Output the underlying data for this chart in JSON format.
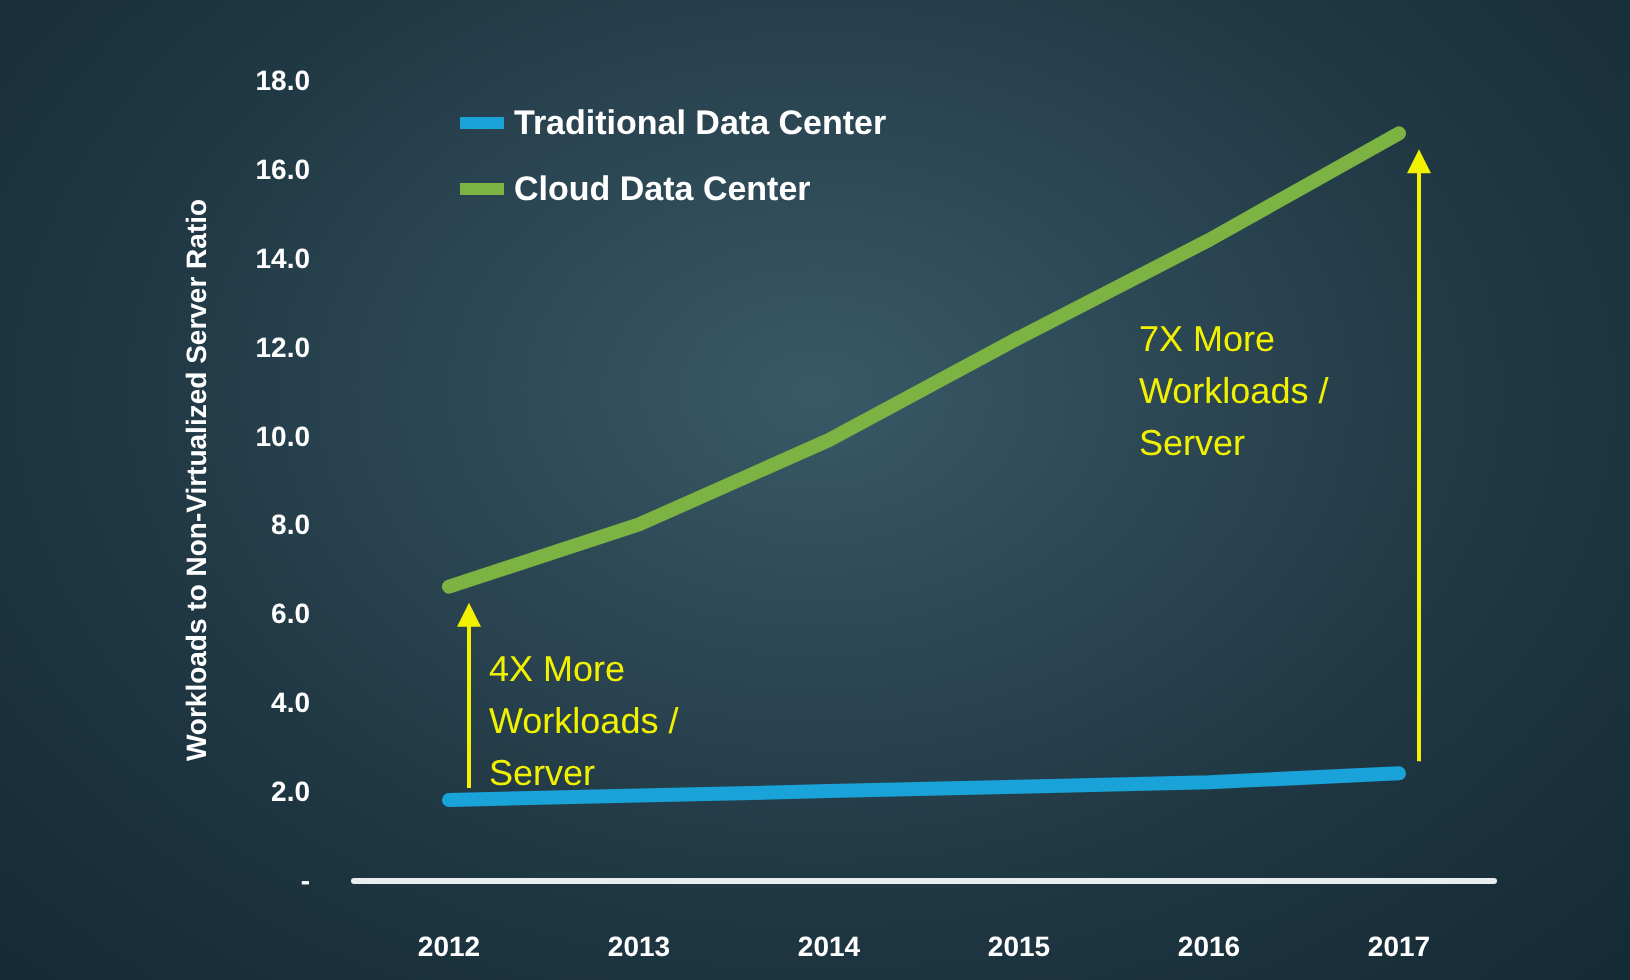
{
  "chart_data": {
    "type": "line",
    "ylabel": "Workloads to Non-Virtualized Server Ratio",
    "categories": [
      "2012",
      "2013",
      "2014",
      "2015",
      "2016",
      "2017"
    ],
    "series": [
      {
        "name": "Traditional Data Center",
        "color": "#1aa3d9",
        "values": [
          1.8,
          1.9,
          2.0,
          2.1,
          2.2,
          2.4
        ]
      },
      {
        "name": "Cloud Data Center",
        "color": "#7cb342",
        "values": [
          6.6,
          8.0,
          9.9,
          12.2,
          14.4,
          16.8
        ]
      }
    ],
    "ylim": [
      0,
      18
    ],
    "yticks": [
      {
        "value": 0,
        "label": "-"
      },
      {
        "value": 2,
        "label": "2.0"
      },
      {
        "value": 4,
        "label": "4.0"
      },
      {
        "value": 6,
        "label": "6.0"
      },
      {
        "value": 8,
        "label": "8.0"
      },
      {
        "value": 10,
        "label": "10.0"
      },
      {
        "value": 12,
        "label": "12.0"
      },
      {
        "value": 14,
        "label": "14.0"
      },
      {
        "value": 16,
        "label": "16.0"
      },
      {
        "value": 18,
        "label": "18.0"
      }
    ],
    "annotations": [
      "4X More Workloads / Server",
      "7X More Workloads / Server"
    ],
    "grid": false,
    "legend": "top left",
    "line_style": "solid"
  }
}
